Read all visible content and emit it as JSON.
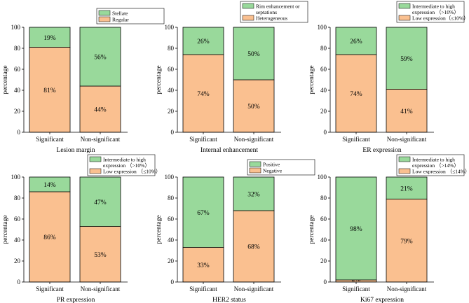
{
  "colors": {
    "bottom": "#FAC090",
    "top": "#99D99B",
    "stroke": "#000000"
  },
  "chart_data": [
    {
      "type": "bar",
      "stacked": true,
      "title": "",
      "xlabel": "Lesion margin",
      "ylabel": "percentage",
      "ylim": [
        0,
        100
      ],
      "yticks": [
        "0",
        "20",
        "40",
        "60",
        "80",
        "100"
      ],
      "categories": [
        "Significant",
        "Non-significant"
      ],
      "series": [
        {
          "name": "Regular",
          "values": [
            81,
            44
          ],
          "labels": [
            "81%",
            "44%"
          ]
        },
        {
          "name": "Stellate",
          "values": [
            19,
            56
          ],
          "labels": [
            "19%",
            "56%"
          ]
        }
      ],
      "legend": [
        "Stellate",
        "Regular"
      ]
    },
    {
      "type": "bar",
      "stacked": true,
      "title": "",
      "xlabel": "Internal enhancement",
      "ylabel": "percentage",
      "ylim": [
        0,
        100
      ],
      "yticks": [
        "0",
        "20",
        "40",
        "60",
        "80",
        "100"
      ],
      "categories": [
        "Significant",
        "Non-significant"
      ],
      "series": [
        {
          "name": "Heterogeneous",
          "values": [
            74,
            50
          ],
          "labels": [
            "74%",
            "50%"
          ]
        },
        {
          "name": "Rim enhancement or septations",
          "values": [
            26,
            50
          ],
          "labels": [
            "26%",
            "50%"
          ]
        }
      ],
      "legend": [
        "Rim enhancement or",
        "septations",
        "Heterogeneous"
      ]
    },
    {
      "type": "bar",
      "stacked": true,
      "title": "",
      "xlabel": "ER expression",
      "ylabel": "percentage",
      "ylim": [
        0,
        100
      ],
      "yticks": [
        "0",
        "20",
        "40",
        "60",
        "80",
        "100"
      ],
      "categories": [
        "Significant",
        "Non-significant"
      ],
      "series": [
        {
          "name": "Low expression (≤10%)",
          "values": [
            74,
            41
          ],
          "labels": [
            "74%",
            "41%"
          ]
        },
        {
          "name": "Intermediate to high expression (>10%)",
          "values": [
            26,
            59
          ],
          "labels": [
            "26%",
            "59%"
          ]
        }
      ],
      "legend": [
        "Intermediate to high",
        "expression （>10%）",
        "Low expression（≤10%）"
      ]
    },
    {
      "type": "bar",
      "stacked": true,
      "title": "",
      "xlabel": "PR expression",
      "ylabel": "percentage",
      "ylim": [
        0,
        100
      ],
      "yticks": [
        "0",
        "20",
        "40",
        "60",
        "80",
        "100"
      ],
      "categories": [
        "Significant",
        "Non-significant"
      ],
      "series": [
        {
          "name": "Low expression (≤10%)",
          "values": [
            86,
            53
          ],
          "labels": [
            "86%",
            "53%"
          ]
        },
        {
          "name": "Intermediate to high expression (>10%)",
          "values": [
            14,
            47
          ],
          "labels": [
            "14%",
            "47%"
          ]
        }
      ],
      "legend": [
        "Intermediate to high",
        "expression （>10%）",
        "Low expression （≤10%）"
      ]
    },
    {
      "type": "bar",
      "stacked": true,
      "title": "",
      "xlabel": "HER2 status",
      "ylabel": "percentage",
      "ylim": [
        0,
        100
      ],
      "yticks": [
        "0",
        "20",
        "40",
        "60",
        "80",
        "100"
      ],
      "categories": [
        "Significant",
        "Non-significant"
      ],
      "series": [
        {
          "name": "Negative",
          "values": [
            33,
            68
          ],
          "labels": [
            "33%",
            "68%"
          ]
        },
        {
          "name": "Positive",
          "values": [
            67,
            32
          ],
          "labels": [
            "67%",
            "32%"
          ]
        }
      ],
      "legend": [
        "Positive",
        "Negative"
      ]
    },
    {
      "type": "bar",
      "stacked": true,
      "title": "",
      "xlabel": "Ki67 expression",
      "ylabel": "percentage",
      "ylim": [
        0,
        100
      ],
      "yticks": [
        "0",
        "20",
        "40",
        "60",
        "80",
        "100"
      ],
      "categories": [
        "Significant",
        "Non-significant"
      ],
      "series": [
        {
          "name": "Low expression (≤14%)",
          "values": [
            2,
            79
          ],
          "labels": [
            "2%",
            "79%"
          ]
        },
        {
          "name": "Intermediate to high expression (>14%)",
          "values": [
            98,
            21
          ],
          "labels": [
            "98%",
            "21%"
          ]
        }
      ],
      "legend": [
        "Intermediate to high",
        "expression （>14%）",
        "Low expression （≤14%）"
      ]
    }
  ]
}
